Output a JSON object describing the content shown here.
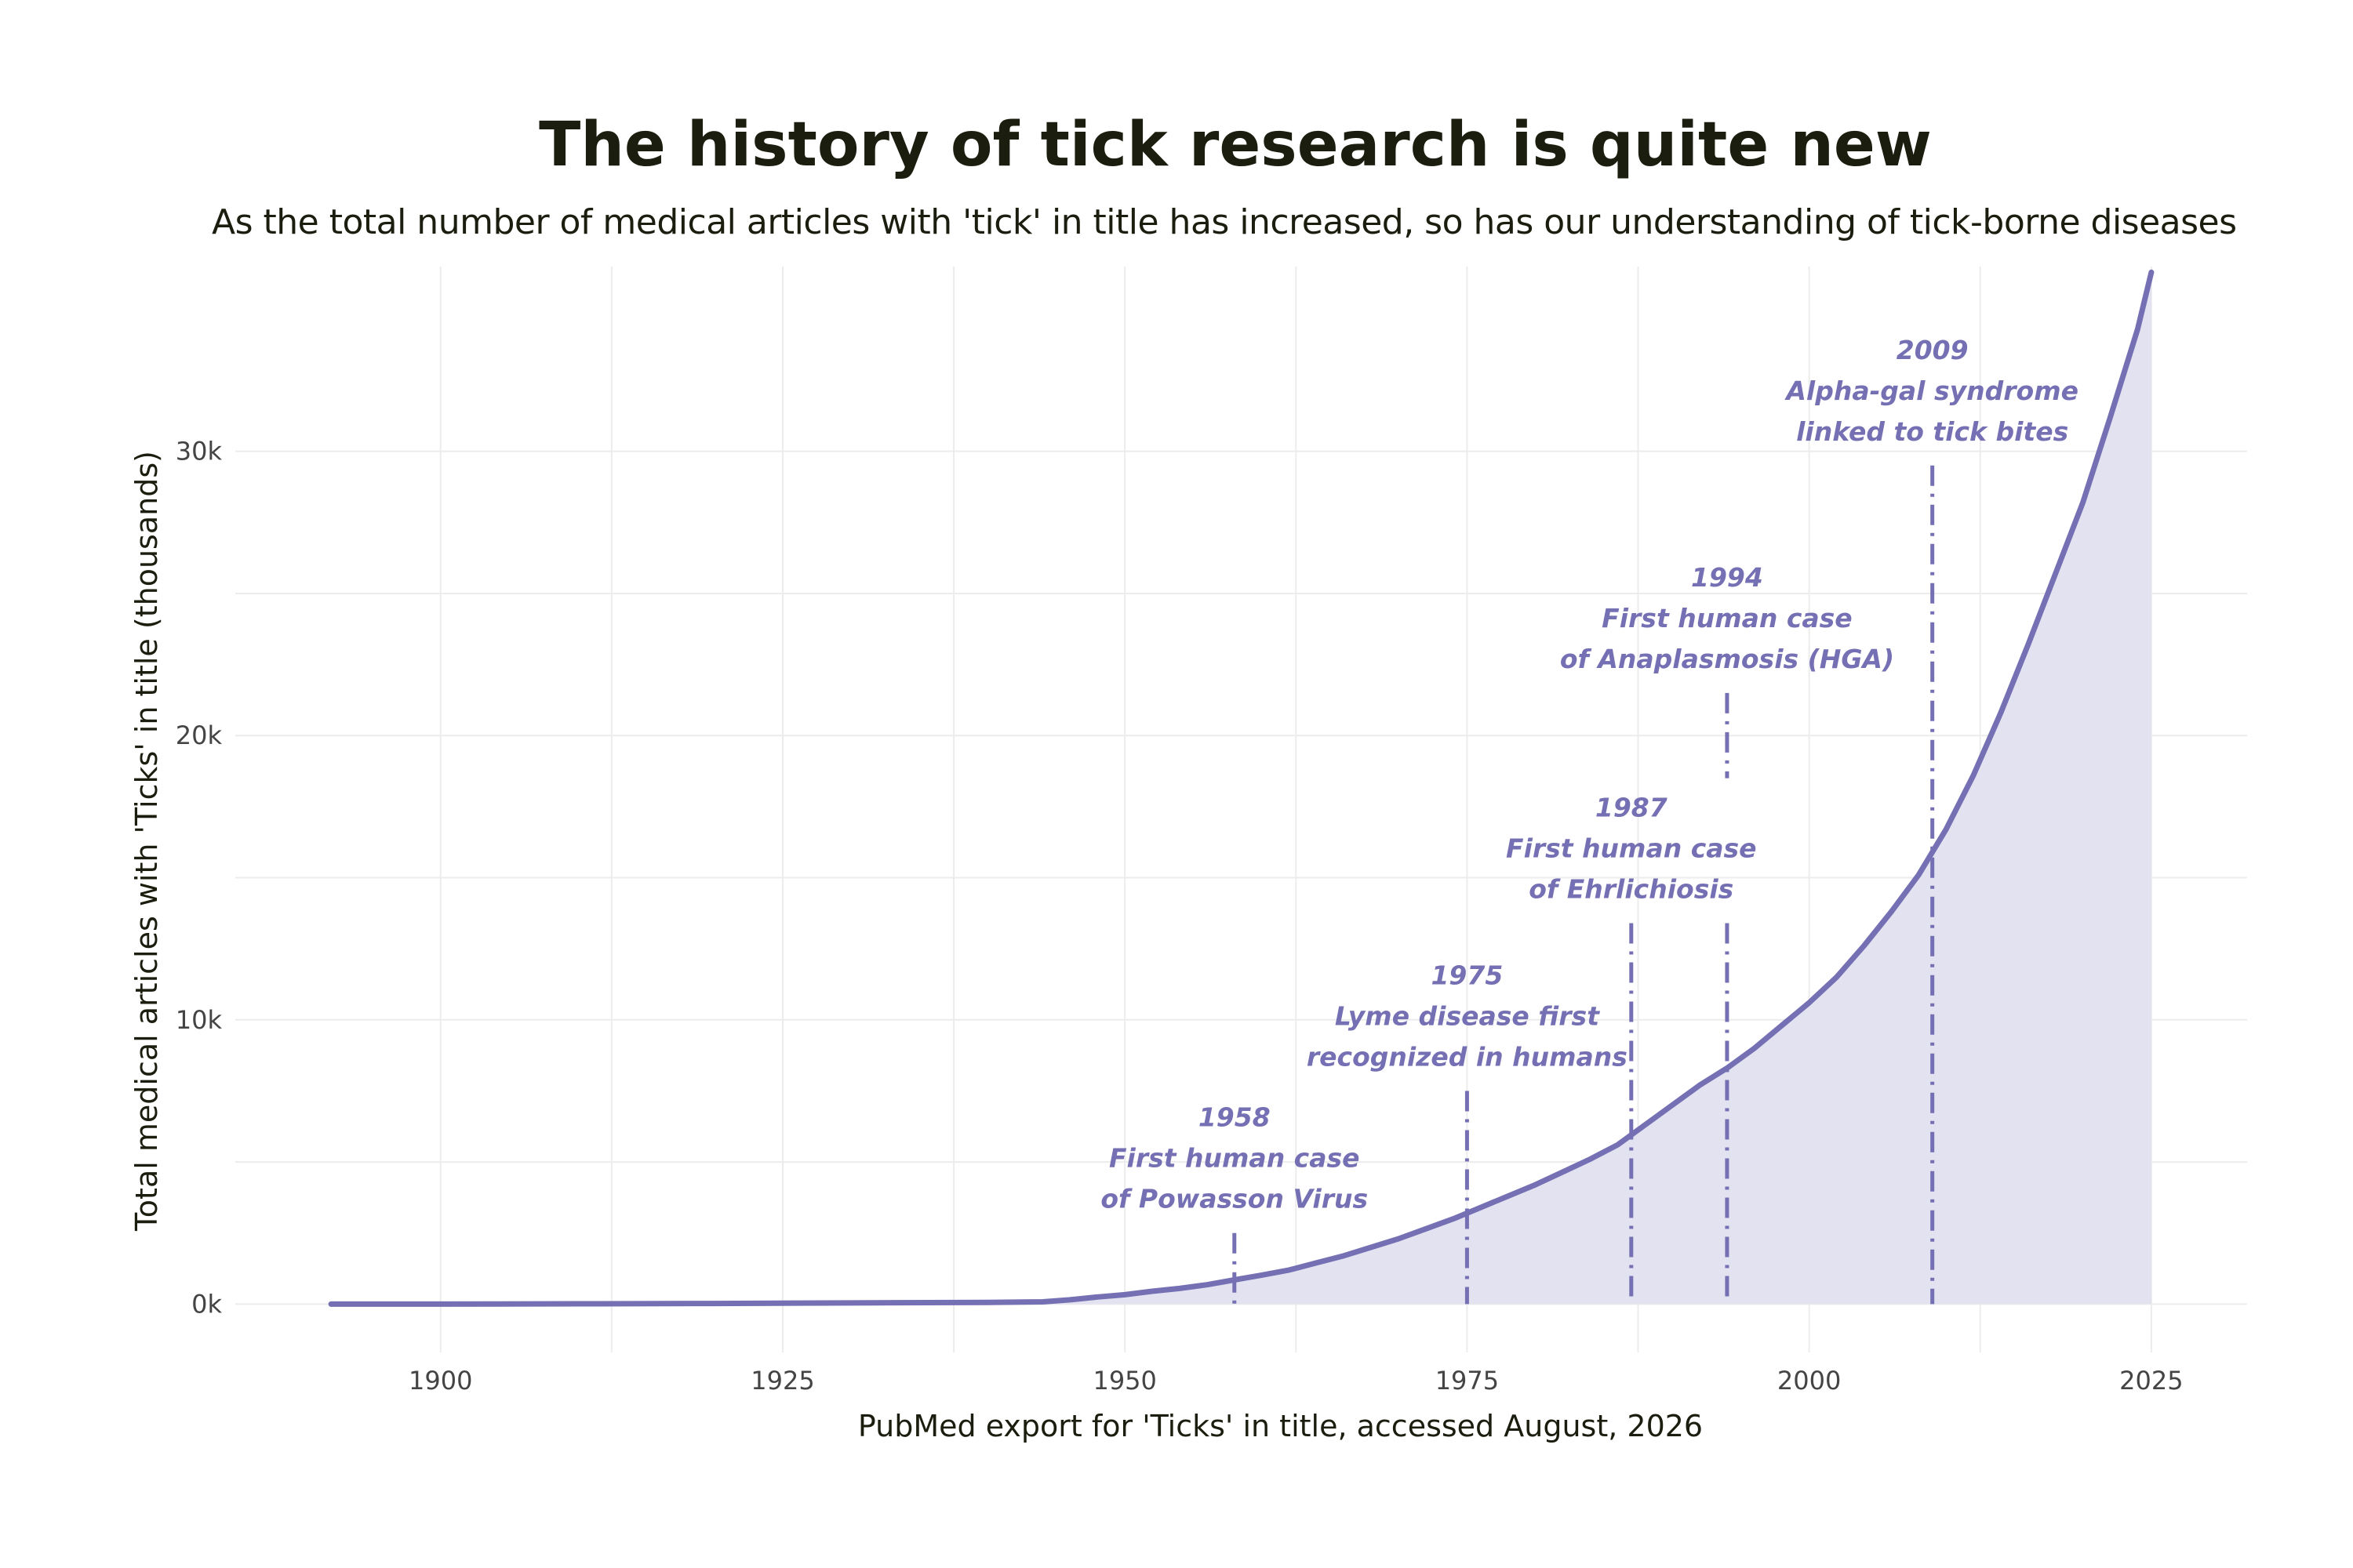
{
  "chart_data": {
    "type": "area",
    "title": "The history of tick research is quite new",
    "subtitle": "As the total number of medical articles with 'tick' in title has increased, so has our understanding of tick-borne diseases",
    "xlabel": "PubMed export for 'Ticks' in title, accessed August, 2026",
    "ylabel": "Total medical articles with 'Ticks' in title (thousands)",
    "xlim": [
      1885,
      2032
    ],
    "ylim": [
      -1700,
      36500
    ],
    "x_ticks": [
      1900,
      1925,
      1950,
      1975,
      2000,
      2025
    ],
    "x_tick_labels": [
      "1900",
      "1925",
      "1950",
      "1975",
      "2000",
      "2025"
    ],
    "y_ticks": [
      0,
      10000,
      20000,
      30000
    ],
    "y_tick_labels": [
      "0k",
      "10k",
      "20k",
      "30k"
    ],
    "grid": true,
    "series": [
      {
        "color": "#7570b3",
        "fill_color": "#e3e2f0",
        "x": [
          1892,
          1900,
          1910,
          1920,
          1930,
          1940,
          1944,
          1946,
          1948,
          1950,
          1952,
          1954,
          1956,
          1958,
          1960,
          1962,
          1964,
          1966,
          1968,
          1970,
          1972,
          1974,
          1976,
          1978,
          1980,
          1982,
          1984,
          1986,
          1988,
          1990,
          1992,
          1994,
          1996,
          1998,
          2000,
          2002,
          2004,
          2006,
          2008,
          2010,
          2012,
          2014,
          2016,
          2018,
          2020,
          2022,
          2024,
          2025
        ],
        "y": [
          0,
          0,
          10,
          20,
          40,
          60,
          80,
          150,
          250,
          330,
          450,
          550,
          680,
          850,
          1020,
          1200,
          1450,
          1700,
          2000,
          2300,
          2650,
          3000,
          3400,
          3800,
          4200,
          4650,
          5100,
          5600,
          6300,
          7000,
          7700,
          8300,
          9000,
          9800,
          10600,
          11500,
          12600,
          13800,
          15100,
          16700,
          18600,
          20800,
          23200,
          25700,
          28200,
          31200,
          34300,
          36300
        ]
      }
    ],
    "annotations": [
      {
        "x": 1958,
        "year": "1958",
        "lines": [
          "First human case",
          "of Powasson Virus"
        ],
        "line_top": 2500,
        "line_bottom": 0
      },
      {
        "x": 1975,
        "year": "1975",
        "lines": [
          "Lyme disease first",
          "recognized in humans"
        ],
        "line_top": 7500,
        "line_bottom": 0
      },
      {
        "x": 1987,
        "year": "1987",
        "lines": [
          "First human case",
          "of Ehrlichiosis"
        ],
        "line_top": 13400,
        "line_bottom": 0
      },
      {
        "x": 1994,
        "year": "1994",
        "lines": [
          "First human case",
          "of Anaplasmosis (HGA)"
        ],
        "line_top": 21500,
        "line_bottom": 0,
        "gap_from": 18500,
        "gap_to": 13400
      },
      {
        "x": 2009,
        "year": "2009",
        "lines": [
          "Alpha-gal syndrome",
          "linked to tick bites"
        ],
        "line_top": 29500,
        "line_bottom": 0
      }
    ]
  }
}
